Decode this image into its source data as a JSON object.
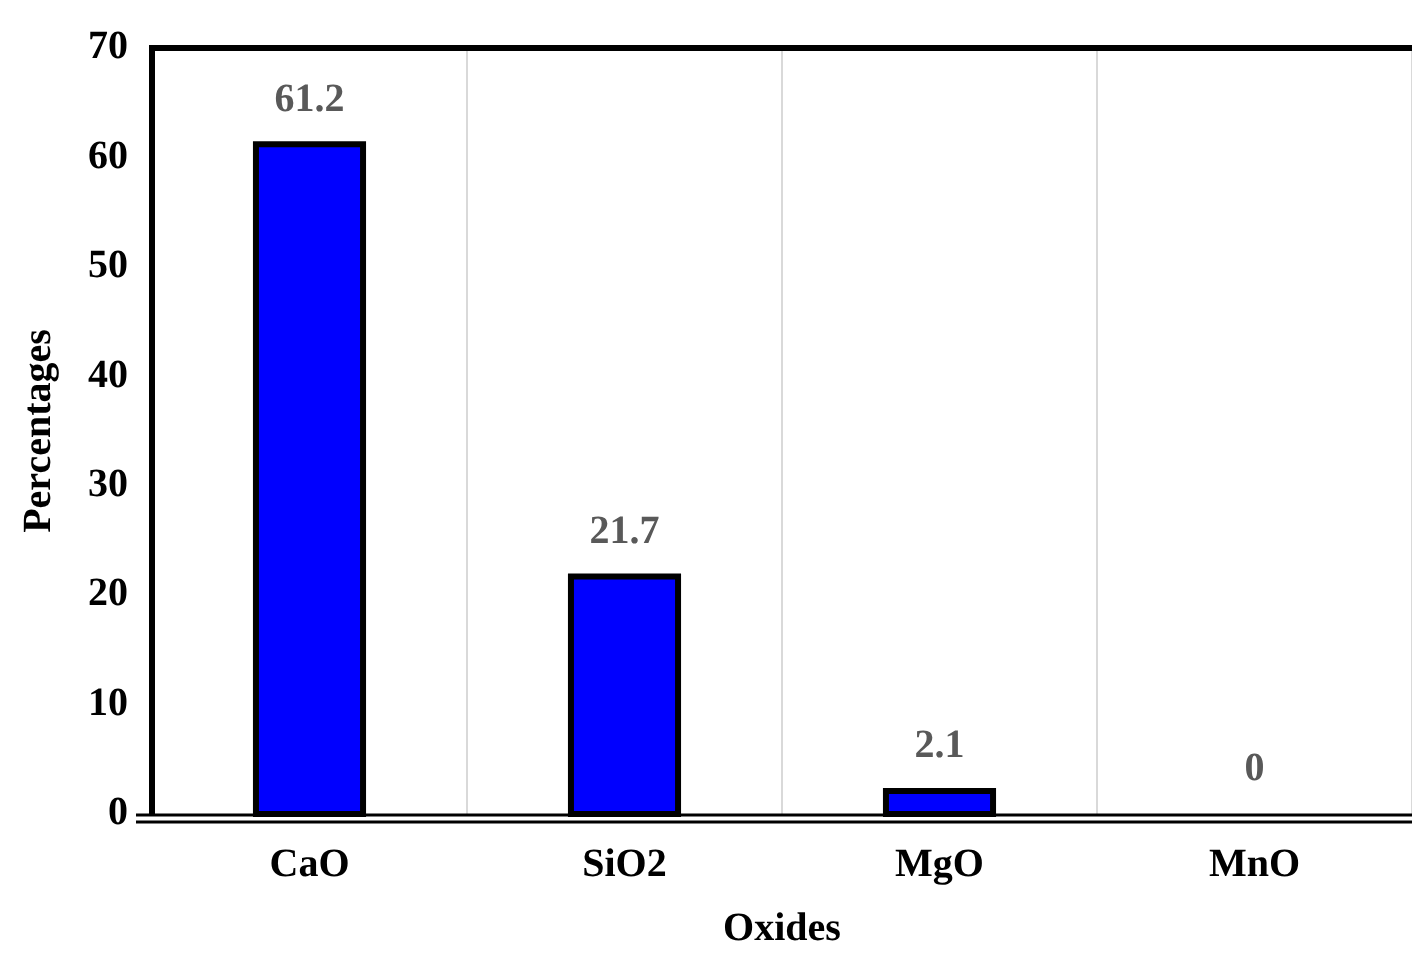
{
  "chart_data": {
    "type": "bar",
    "xlabel": "Oxides",
    "ylabel": "Percentages",
    "categories": [
      "CaO",
      "SiO2",
      "MgO",
      "MnO"
    ],
    "values": [
      61.2,
      21.7,
      2.1,
      0
    ],
    "color": "#0000ff",
    "ylim": [
      0,
      70
    ],
    "yticks": [
      0,
      10,
      20,
      30,
      40,
      50,
      60,
      70
    ],
    "grid": "x",
    "data_labels": true,
    "legend": false
  }
}
